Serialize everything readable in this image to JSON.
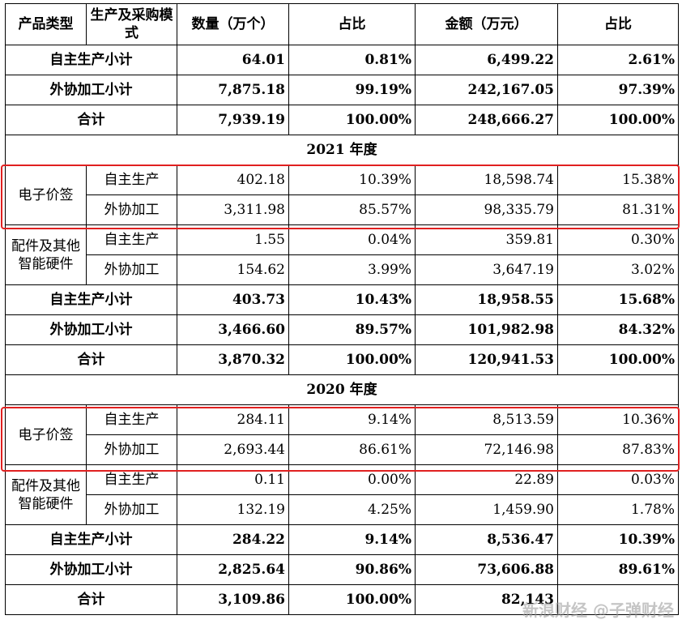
{
  "header": {
    "product_type": "产品类型",
    "mode": "生产及采购模式",
    "qty": "数量（万个）",
    "share1": "占比",
    "amount": "金额（万元）",
    "share2": "占比"
  },
  "top": {
    "rows": [
      {
        "label": "自主生产小计",
        "qty": "64.01",
        "share1": "0.81%",
        "amount": "6,499.22",
        "share2": "2.61%"
      },
      {
        "label": "外协加工小计",
        "qty": "7,875.18",
        "share1": "99.19%",
        "amount": "242,167.05",
        "share2": "97.39%"
      },
      {
        "label": "合计",
        "qty": "7,939.19",
        "share1": "100.00%",
        "amount": "248,666.27",
        "share2": "100.00%"
      }
    ]
  },
  "y2021": {
    "title": "2021 年度",
    "esl": {
      "type": "电子价签",
      "rows": [
        {
          "mode": "自主生产",
          "qty": "402.18",
          "share1": "10.39%",
          "amount": "18,598.74",
          "share2": "15.38%"
        },
        {
          "mode": "外协加工",
          "qty": "3,311.98",
          "share1": "85.57%",
          "amount": "98,335.79",
          "share2": "81.31%"
        }
      ]
    },
    "parts": {
      "type": "配件及其他智能硬件",
      "rows": [
        {
          "mode": "自主生产",
          "qty": "1.55",
          "share1": "0.04%",
          "amount": "359.81",
          "share2": "0.30%"
        },
        {
          "mode": "外协加工",
          "qty": "154.62",
          "share1": "3.99%",
          "amount": "3,647.19",
          "share2": "3.02%"
        }
      ]
    },
    "subtotals": [
      {
        "label": "自主生产小计",
        "qty": "403.73",
        "share1": "10.43%",
        "amount": "18,958.55",
        "share2": "15.68%"
      },
      {
        "label": "外协加工小计",
        "qty": "3,466.60",
        "share1": "89.57%",
        "amount": "101,982.98",
        "share2": "84.32%"
      },
      {
        "label": "合计",
        "qty": "3,870.32",
        "share1": "100.00%",
        "amount": "120,941.53",
        "share2": "100.00%"
      }
    ]
  },
  "y2020": {
    "title": "2020 年度",
    "esl": {
      "type": "电子价签",
      "rows": [
        {
          "mode": "自主生产",
          "qty": "284.11",
          "share1": "9.14%",
          "amount": "8,513.59",
          "share2": "10.36%"
        },
        {
          "mode": "外协加工",
          "qty": "2,693.44",
          "share1": "86.61%",
          "amount": "72,146.98",
          "share2": "87.83%"
        }
      ]
    },
    "parts": {
      "type": "配件及其他智能硬件",
      "rows": [
        {
          "mode": "自主生产",
          "qty": "0.11",
          "share1": "0.00%",
          "amount": "22.89",
          "share2": "0.03%"
        },
        {
          "mode": "外协加工",
          "qty": "132.19",
          "share1": "4.25%",
          "amount": "1,459.90",
          "share2": "1.78%"
        }
      ]
    },
    "subtotals": [
      {
        "label": "自主生产小计",
        "qty": "284.22",
        "share1": "9.14%",
        "amount": "8,536.47",
        "share2": "10.39%"
      },
      {
        "label": "外协加工小计",
        "qty": "2,825.64",
        "share1": "90.86%",
        "amount": "73,606.88",
        "share2": "89.61%"
      },
      {
        "label": "合计",
        "qty": "3,109.86",
        "share1": "100.00%",
        "amount": "82,143",
        "share2": ""
      }
    ]
  },
  "watermark": "新浪财经 @子弹财经",
  "colors": {
    "highlight": "#e02020"
  }
}
